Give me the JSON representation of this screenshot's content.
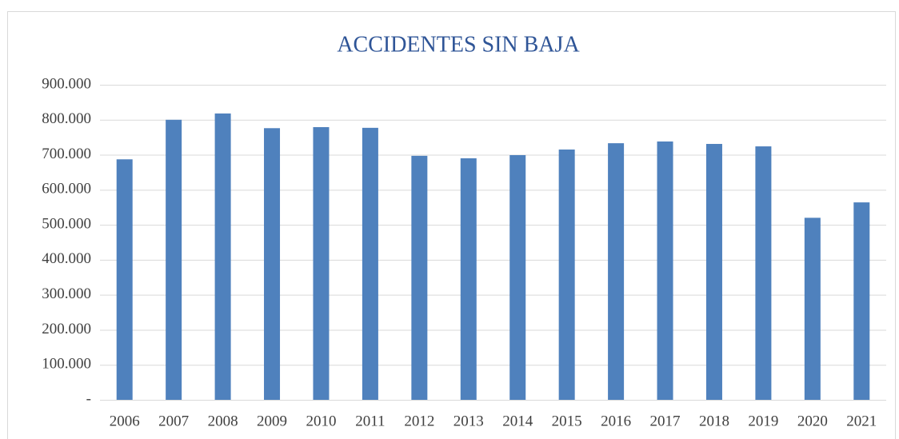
{
  "chart_data": {
    "type": "bar",
    "title": "ACCIDENTES SIN BAJA",
    "categories": [
      "2006",
      "2007",
      "2008",
      "2009",
      "2010",
      "2011",
      "2012",
      "2013",
      "2014",
      "2015",
      "2016",
      "2017",
      "2018",
      "2019",
      "2020",
      "2021"
    ],
    "values": [
      687000,
      800000,
      818000,
      776000,
      779000,
      777000,
      697000,
      690000,
      699000,
      715000,
      733000,
      738000,
      731000,
      724000,
      520000,
      564000
    ],
    "color": "#4f81bd",
    "ylim": [
      0,
      900000
    ],
    "yticks": [
      {
        "value": 0,
        "label": "-"
      },
      {
        "value": 100000,
        "label": "100.000"
      },
      {
        "value": 200000,
        "label": "200.000"
      },
      {
        "value": 300000,
        "label": "300.000"
      },
      {
        "value": 400000,
        "label": "400.000"
      },
      {
        "value": 500000,
        "label": "500.000"
      },
      {
        "value": 600000,
        "label": "600.000"
      },
      {
        "value": 700000,
        "label": "700.000"
      },
      {
        "value": 800000,
        "label": "800.000"
      },
      {
        "value": 900000,
        "label": "900.000"
      }
    ],
    "grid": true
  }
}
